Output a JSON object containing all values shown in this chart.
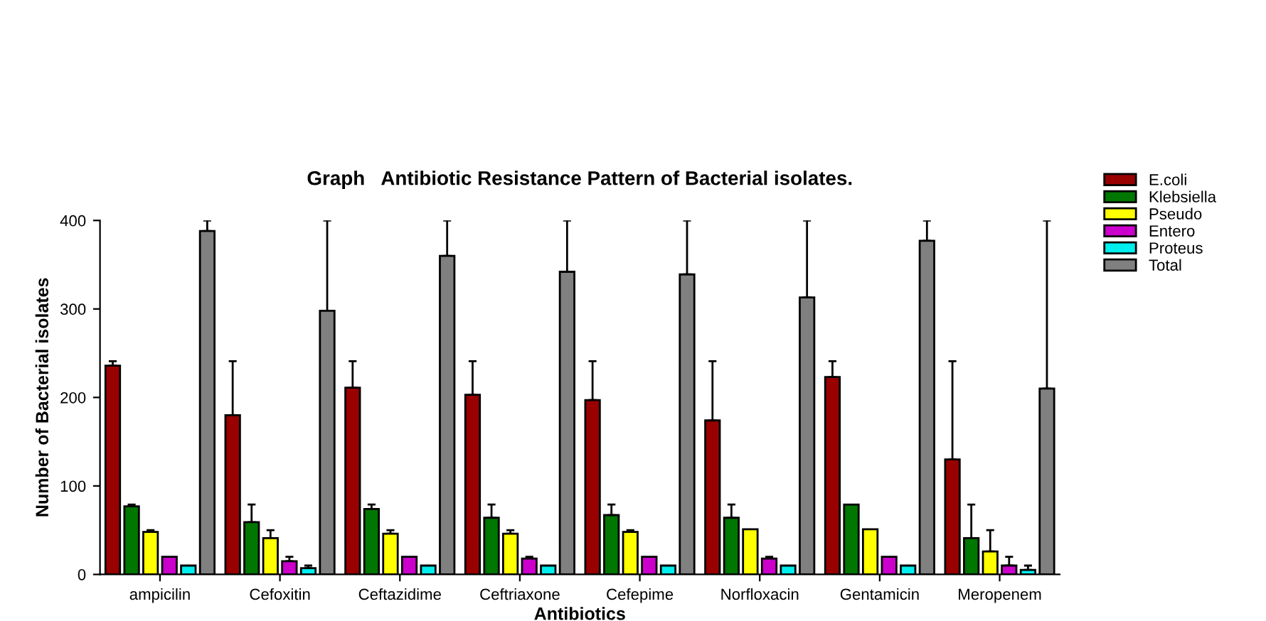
{
  "chart_data": {
    "type": "bar",
    "title": "Graph   Antibiotic Resistance Pattern of Bacterial isolates.",
    "xlabel": "Antibiotics",
    "ylabel": "Number of Bacterial isolates",
    "categories": [
      "ampicilin",
      "Cefoxitin",
      "Ceftazidime",
      "Ceftriaxone",
      "Cefepime",
      "Norfloxacin",
      "Gentamicin",
      "Meropenem"
    ],
    "series": [
      {
        "name": "E.coli",
        "color": "#990000",
        "values": [
          236,
          180,
          211,
          203,
          197,
          174,
          223,
          130
        ],
        "errors": [
          [
            236,
            241
          ],
          [
            180,
            241
          ],
          [
            211,
            241
          ],
          [
            203,
            241
          ],
          [
            197,
            241
          ],
          [
            174,
            241
          ],
          [
            223,
            241
          ],
          [
            130,
            241
          ]
        ]
      },
      {
        "name": "Klebsiella",
        "color": "#007700",
        "values": [
          77,
          59,
          74,
          64,
          67,
          64,
          79,
          41
        ],
        "errors": [
          [
            77,
            79
          ],
          [
            59,
            79
          ],
          [
            74,
            79
          ],
          [
            64,
            79
          ],
          [
            67,
            79
          ],
          [
            64,
            79
          ],
          null,
          [
            41,
            79
          ]
        ]
      },
      {
        "name": "Pseudo",
        "color": "#ffff00",
        "values": [
          48,
          41,
          46,
          46,
          48,
          51,
          51,
          26
        ],
        "errors": [
          [
            48,
            50
          ],
          [
            41,
            50
          ],
          [
            46,
            50
          ],
          [
            46,
            50
          ],
          [
            48,
            50
          ],
          null,
          null,
          [
            26,
            50
          ]
        ]
      },
      {
        "name": "Entero",
        "color": "#cc00cc",
        "values": [
          20,
          15,
          20,
          18,
          20,
          18,
          20,
          10
        ],
        "errors": [
          null,
          [
            15,
            20
          ],
          null,
          [
            18,
            20
          ],
          null,
          [
            18,
            20
          ],
          null,
          [
            10,
            20
          ]
        ]
      },
      {
        "name": "Proteus",
        "color": "#00eeee",
        "values": [
          10,
          7,
          10,
          10,
          10,
          10,
          10,
          5
        ],
        "errors": [
          null,
          [
            7,
            10
          ],
          null,
          null,
          null,
          null,
          null,
          [
            5,
            10
          ]
        ]
      },
      {
        "name": "Total",
        "color": "#808080",
        "values": [
          388,
          298,
          360,
          342,
          339,
          313,
          377,
          210
        ],
        "errors": [
          [
            388,
            400
          ],
          [
            298,
            400
          ],
          [
            360,
            400
          ],
          [
            342,
            400
          ],
          [
            339,
            400
          ],
          [
            313,
            400
          ],
          [
            377,
            400
          ],
          [
            210,
            400
          ]
        ]
      }
    ],
    "ylim": [
      0,
      400
    ],
    "yticks": [
      0,
      100,
      200,
      300,
      400
    ],
    "grid": false,
    "legend": "top right"
  }
}
